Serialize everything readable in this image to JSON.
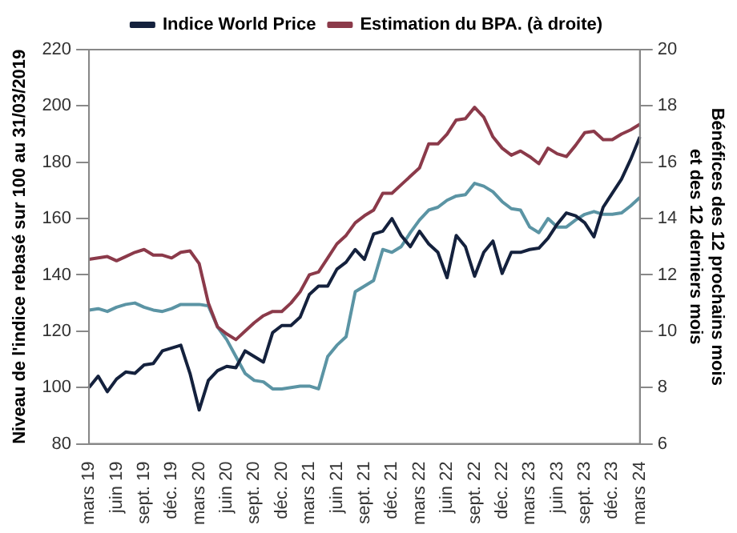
{
  "chart_data": {
    "type": "line",
    "categories": [
      "mars 19",
      null,
      null,
      "juin 19",
      null,
      null,
      "sept. 19",
      null,
      null,
      "déc. 19",
      null,
      null,
      "mars 20",
      null,
      null,
      "juin 20",
      null,
      null,
      "sept. 20",
      null,
      null,
      "déc. 20",
      null,
      null,
      "mars 21",
      null,
      null,
      "juin 21",
      null,
      null,
      "sept. 21",
      null,
      null,
      "déc. 21",
      null,
      null,
      "mars 22",
      null,
      null,
      "juin 22",
      null,
      null,
      "sept. 22",
      null,
      null,
      "déc. 22",
      null,
      null,
      "mars 23",
      null,
      null,
      "juin 23",
      null,
      null,
      "sept. 23",
      null,
      null,
      "déc. 23",
      null,
      null,
      "mars 24"
    ],
    "series": [
      {
        "name": "Indice World Price",
        "color": "#14213d",
        "values": [
          100,
          104,
          98.5,
          103,
          105.5,
          105,
          108,
          108.5,
          113,
          114,
          115,
          105,
          92,
          102.5,
          106,
          107.5,
          107,
          113,
          111,
          109,
          119.5,
          122,
          122,
          125,
          133,
          136,
          136,
          142,
          144.5,
          149,
          145.5,
          154.5,
          155.5,
          160,
          154,
          150,
          155.5,
          151,
          148,
          139,
          154,
          150,
          139.5,
          148,
          152,
          140.5,
          148,
          148,
          149,
          149.5,
          153,
          158,
          162,
          161,
          158.5,
          153.5,
          164,
          169,
          174,
          181,
          189
        ]
      },
      {
        "name": "Estimation du BPA. (à droite)",
        "color": "#8b3a4a",
        "axis": "y2",
        "values": [
          12.55,
          12.6,
          12.65,
          12.5,
          12.65,
          12.8,
          12.9,
          12.7,
          12.7,
          12.6,
          12.8,
          12.85,
          12.4,
          11,
          10.15,
          9.9,
          9.7,
          10,
          10.3,
          10.55,
          10.7,
          10.7,
          11,
          11.4,
          12,
          12.1,
          12.6,
          13.1,
          13.4,
          13.85,
          14.1,
          14.3,
          14.9,
          14.9,
          15.2,
          15.5,
          15.8,
          16.65,
          16.65,
          17,
          17.5,
          17.55,
          17.95,
          17.6,
          16.9,
          16.5,
          16.25,
          16.4,
          16.2,
          15.95,
          16.5,
          16.3,
          16.2,
          16.6,
          17.05,
          17.1,
          16.8,
          16.8,
          17,
          17.15,
          17.35
        ]
      },
      {
        "color": "#5b94a4",
        "axis": "y2",
        "values": [
          10.75,
          10.8,
          10.7,
          10.85,
          10.95,
          11,
          10.85,
          10.75,
          10.7,
          10.8,
          10.95,
          10.95,
          10.95,
          10.9,
          10.15,
          9.7,
          9.1,
          8.5,
          8.25,
          8.2,
          7.95,
          7.95,
          8,
          8.05,
          8.05,
          7.95,
          9.1,
          9.5,
          9.8,
          11.4,
          11.6,
          11.8,
          12.9,
          12.8,
          13,
          13.5,
          13.95,
          14.3,
          14.4,
          14.65,
          14.8,
          14.85,
          15.25,
          15.15,
          14.95,
          14.6,
          14.35,
          14.3,
          13.7,
          13.5,
          14,
          13.7,
          13.7,
          13.95,
          14.15,
          14.25,
          14.15,
          14.15,
          14.2,
          14.45,
          14.75
        ]
      }
    ],
    "ylabel": "Niveau de l'indice rebasé sur 100 au 31/03/2019",
    "y2label": "Bénéfices des 12 prochains mois et des 12 derniers mois",
    "ylim": [
      80,
      220
    ],
    "yticks": [
      80,
      100,
      120,
      140,
      160,
      180,
      200,
      220
    ],
    "y2lim": [
      6,
      20
    ],
    "y2ticks": [
      6,
      8,
      10,
      12,
      14,
      16,
      18,
      20
    ],
    "legend": "top",
    "grid": false,
    "marker": "none",
    "line_style": "solid"
  }
}
